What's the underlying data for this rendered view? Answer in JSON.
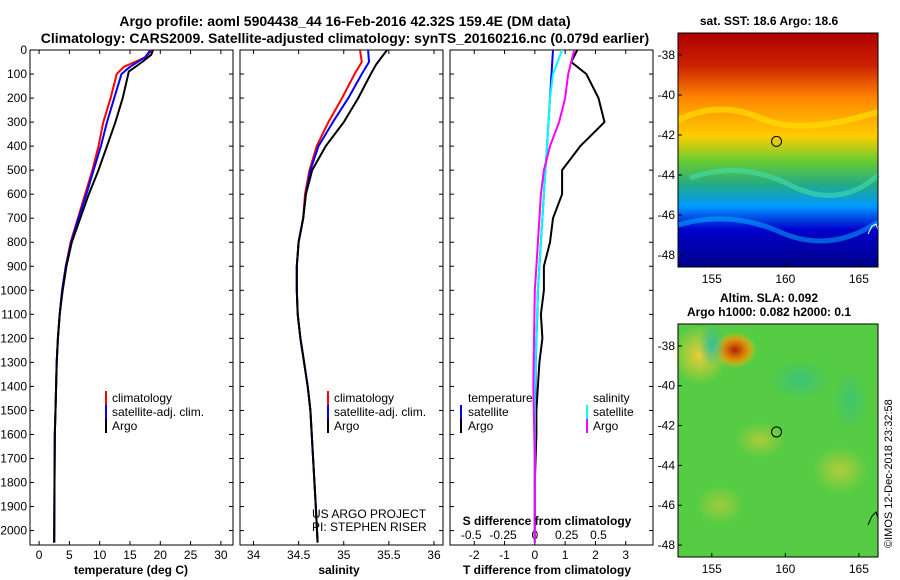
{
  "header": {
    "title_line1": "Argo profile: aoml 5904438_44 16-Feb-2016 42.32S 159.4E (DM data)",
    "title_line2": "Climatology: CARS2009. Satellite-adjusted climatology: synTS_20160216.nc (0.079d earlier)"
  },
  "depth_axis": {
    "ticks": [
      0,
      100,
      200,
      300,
      400,
      500,
      600,
      700,
      800,
      900,
      1000,
      1100,
      1200,
      1300,
      1400,
      1500,
      1600,
      1700,
      1800,
      1900,
      2000
    ],
    "range": [
      0,
      2060
    ]
  },
  "legend": {
    "climatology": "climatology",
    "satellite_adj": "satellite-adj. clim.",
    "argo": "Argo",
    "temperature": "temperature",
    "salinity": "salinity",
    "satellite": "satellite"
  },
  "credits": {
    "project": "US ARGO PROJECT",
    "pi": "PI: STEPHEN RISER"
  },
  "stamp": "©IMOS 12-Dec-2018 23:32:58",
  "colors": {
    "climatology": "#ff0000",
    "satellite_adj": "#0000ff",
    "argo": "#000000",
    "temp_satellite": "#0000ff",
    "sal_satellite": "#00ffff",
    "sal_argo": "#ff00ff"
  },
  "chart_data": [
    {
      "type": "line",
      "xlabel": "temperature (deg C)",
      "ylabel": "depth",
      "xlim": [
        -1.5,
        32
      ],
      "ylim": [
        2060,
        0
      ],
      "xticks": [
        0,
        5,
        10,
        15,
        20,
        25,
        30
      ],
      "series": [
        {
          "name": "climatology",
          "color": "#ff0000",
          "x": [
            18.6,
            17.6,
            14.0,
            12.8,
            11.8,
            10.6,
            9.8,
            8.8,
            7.6,
            6.4,
            5.2,
            4.4,
            3.8,
            3.4,
            3.1,
            2.9,
            2.8,
            2.7,
            2.6,
            2.55,
            2.5
          ],
          "y": [
            0,
            30,
            70,
            100,
            200,
            300,
            400,
            500,
            600,
            700,
            800,
            900,
            1000,
            1100,
            1200,
            1300,
            1400,
            1500,
            1600,
            1800,
            2050
          ]
        },
        {
          "name": "satellite-adj. clim.",
          "color": "#0000ff",
          "x": [
            18.4,
            17.5,
            15.0,
            13.6,
            12.4,
            11.2,
            10.2,
            9.0,
            7.8,
            6.5,
            5.3,
            4.4,
            3.8,
            3.4,
            3.1,
            2.9,
            2.8,
            2.7,
            2.6,
            2.55,
            2.5
          ],
          "y": [
            0,
            30,
            70,
            100,
            200,
            300,
            400,
            500,
            600,
            700,
            800,
            900,
            1000,
            1100,
            1200,
            1300,
            1400,
            1500,
            1600,
            1800,
            2050
          ]
        },
        {
          "name": "Argo",
          "color": "#000000",
          "x": [
            18.8,
            18.5,
            17.0,
            14.8,
            13.8,
            12.6,
            11.2,
            9.8,
            8.2,
            6.8,
            5.4,
            4.5,
            3.9,
            3.4,
            3.1,
            2.9,
            2.8,
            2.7,
            2.6,
            2.55,
            2.5
          ],
          "y": [
            0,
            20,
            50,
            90,
            200,
            300,
            400,
            500,
            600,
            700,
            800,
            900,
            1000,
            1100,
            1200,
            1300,
            1400,
            1500,
            1600,
            1800,
            2050
          ]
        }
      ]
    },
    {
      "type": "line",
      "xlabel": "salinity",
      "ylabel": "depth",
      "xlim": [
        33.85,
        36.1
      ],
      "ylim": [
        2060,
        0
      ],
      "xticks": [
        34,
        34.5,
        35,
        35.5,
        36
      ],
      "series": [
        {
          "name": "climatology",
          "color": "#ff0000",
          "x": [
            35.18,
            35.2,
            35.12,
            34.98,
            34.83,
            34.7,
            34.62,
            34.57,
            34.55,
            34.5,
            34.48,
            34.48,
            34.49,
            34.52,
            34.56,
            34.6,
            34.63,
            34.66,
            34.69,
            34.71
          ],
          "y": [
            0,
            50,
            100,
            200,
            300,
            400,
            500,
            600,
            700,
            800,
            900,
            1000,
            1100,
            1200,
            1300,
            1400,
            1500,
            1700,
            1900,
            2050
          ]
        },
        {
          "name": "satellite-adj. clim.",
          "color": "#0000ff",
          "x": [
            35.27,
            35.28,
            35.2,
            35.05,
            34.88,
            34.72,
            34.63,
            34.58,
            34.55,
            34.5,
            34.48,
            34.48,
            34.49,
            34.52,
            34.56,
            34.6,
            34.63,
            34.66,
            34.69,
            34.71
          ],
          "y": [
            0,
            50,
            100,
            200,
            300,
            400,
            500,
            600,
            700,
            800,
            900,
            1000,
            1100,
            1200,
            1300,
            1400,
            1500,
            1700,
            1900,
            2050
          ]
        },
        {
          "name": "Argo",
          "color": "#000000",
          "x": [
            35.48,
            35.42,
            35.36,
            35.3,
            35.16,
            35.0,
            34.8,
            34.65,
            34.58,
            34.55,
            34.5,
            34.48,
            34.48,
            34.49,
            34.52,
            34.56,
            34.6,
            34.63,
            34.66,
            34.69,
            34.71
          ],
          "y": [
            0,
            30,
            60,
            100,
            200,
            300,
            400,
            500,
            600,
            700,
            800,
            900,
            1000,
            1100,
            1200,
            1300,
            1400,
            1500,
            1700,
            1900,
            2050
          ]
        }
      ]
    },
    {
      "type": "line",
      "xlabel": "T difference from climatology",
      "ylabel": "depth",
      "xlim": [
        -2.8,
        3.9
      ],
      "ylim": [
        2060,
        0
      ],
      "xticks": [
        -2,
        -1,
        0,
        1,
        2,
        3
      ],
      "secondary_xlabel": "S difference from climatology",
      "secondary_xticks": [
        "-0.5",
        "-0.25",
        "0",
        "0.25",
        "0.5"
      ],
      "series": [
        {
          "name": "temperature satellite",
          "color": "#0000ff",
          "x": [
            0.6,
            0.55,
            0.5,
            0.45,
            0.4,
            0.35,
            0.3,
            0.25,
            0.2,
            0.15,
            0.1,
            0.08,
            0.05,
            0.03,
            0.02,
            0.0,
            0.0
          ],
          "y": [
            0,
            100,
            200,
            300,
            400,
            500,
            600,
            700,
            800,
            900,
            1000,
            1100,
            1200,
            1300,
            1400,
            1600,
            2050
          ]
        },
        {
          "name": "temperature Argo",
          "color": "#000000",
          "x": [
            1.4,
            1.2,
            1.7,
            2.1,
            2.3,
            1.5,
            0.9,
            0.9,
            0.6,
            0.5,
            0.3,
            0.3,
            0.2,
            0.25,
            0.15,
            0.1,
            0.05,
            0.05,
            0.0,
            0.0
          ],
          "y": [
            0,
            50,
            100,
            200,
            300,
            400,
            500,
            600,
            700,
            800,
            900,
            1000,
            1100,
            1200,
            1300,
            1400,
            1500,
            1600,
            1800,
            2050
          ]
        },
        {
          "name": "salinity satellite",
          "color": "#00ffff",
          "x": [
            0.9,
            0.6,
            0.5,
            0.45,
            0.4,
            0.35,
            0.3,
            0.25,
            0.2,
            0.15,
            0.1,
            0.05,
            0.0,
            0.0
          ],
          "y": [
            0,
            100,
            200,
            300,
            400,
            500,
            600,
            700,
            800,
            900,
            1000,
            1200,
            1400,
            2050
          ]
        },
        {
          "name": "salinity Argo",
          "color": "#ff00ff",
          "x": [
            1.3,
            1.1,
            1.0,
            0.8,
            0.5,
            0.3,
            0.2,
            0.15,
            0.1,
            0.05,
            0.0,
            -0.05,
            0.0,
            0.0
          ],
          "y": [
            0,
            100,
            200,
            300,
            400,
            500,
            600,
            700,
            800,
            900,
            1000,
            1400,
            1700,
            2050
          ]
        }
      ]
    },
    {
      "type": "heatmap",
      "title": "sat. SST: 18.6 Argo: 18.6",
      "xticks": [
        155,
        160,
        165
      ],
      "yticks": [
        -38,
        -40,
        -42,
        -44,
        -46,
        -48
      ],
      "xlim": [
        152.7,
        166.3
      ],
      "ylim": [
        -48.6,
        -36.9
      ],
      "marker": {
        "lon": 159.4,
        "lat": -42.32
      }
    },
    {
      "type": "heatmap",
      "title_line1": "Altim. SLA: 0.092",
      "title_line2": "Argo h1000: 0.082 h2000: 0.1",
      "xticks": [
        155,
        160,
        165
      ],
      "yticks": [
        -38,
        -40,
        -42,
        -44,
        -46,
        -48
      ],
      "xlim": [
        152.7,
        166.3
      ],
      "ylim": [
        -48.6,
        -36.9
      ],
      "marker": {
        "lon": 159.4,
        "lat": -42.32
      }
    }
  ]
}
